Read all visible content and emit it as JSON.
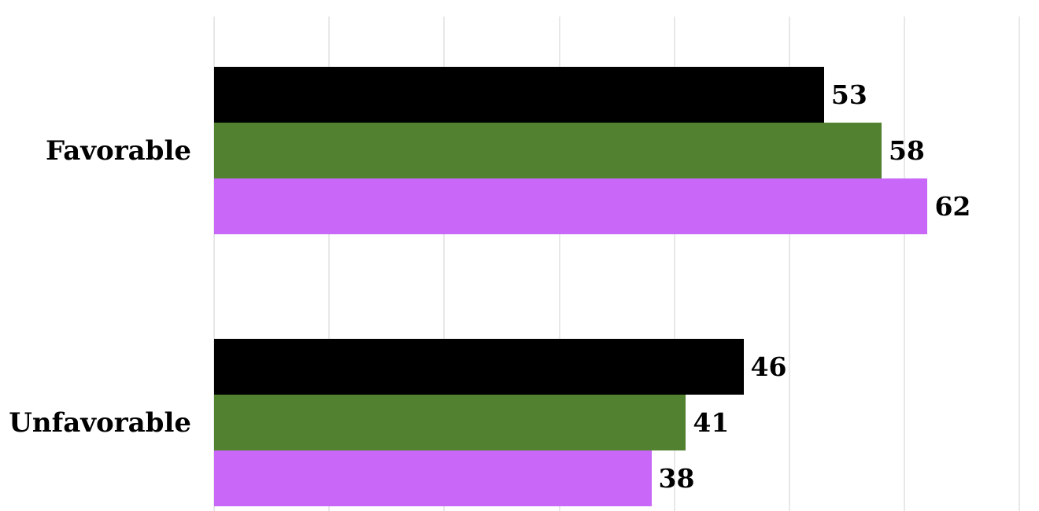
{
  "chart_data": {
    "type": "bar",
    "orientation": "horizontal",
    "title": "",
    "categories": [
      "Favorable",
      "Unfavorable"
    ],
    "series": [
      {
        "name": "black",
        "color": "#000000",
        "values": [
          53,
          46
        ]
      },
      {
        "name": "green",
        "color": "#52812f",
        "values": [
          58,
          41
        ]
      },
      {
        "name": "purple",
        "color": "#c867f8",
        "values": [
          62,
          38
        ]
      }
    ],
    "value_labels": [
      [
        "53",
        "58",
        "62"
      ],
      [
        "46",
        "41",
        "38"
      ]
    ],
    "xlim": [
      0,
      71.7
    ],
    "gridline_values": [
      0,
      10,
      20,
      30,
      40,
      50,
      60,
      70
    ],
    "gridline_color": "#e8e8e8",
    "grid": "vertical-only",
    "axis_tick_labels_shown": false,
    "legend": "none",
    "value_label_color": "#000000",
    "category_label_color": "#000000"
  }
}
